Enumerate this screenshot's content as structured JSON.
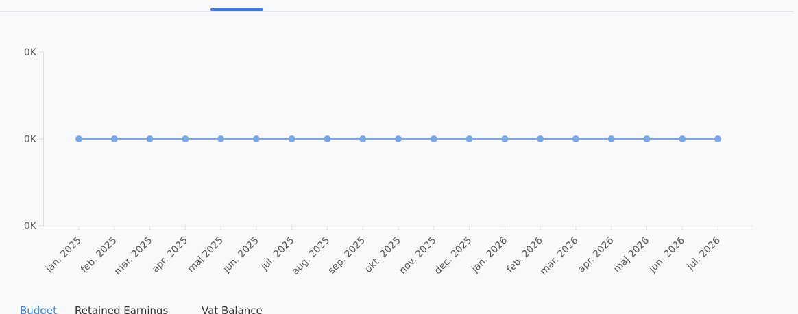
{
  "chart_data": {
    "type": "line",
    "categories": [
      "jan. 2025",
      "feb. 2025",
      "mar. 2025",
      "apr. 2025",
      "maj 2025",
      "jun. 2025",
      "jul. 2025",
      "aug. 2025",
      "sep. 2025",
      "okt. 2025",
      "nov. 2025",
      "dec. 2025",
      "jan. 2026",
      "feb. 2026",
      "mar. 2026",
      "apr. 2026",
      "maj 2026",
      "jun. 2026",
      "jul. 2026"
    ],
    "series": [
      {
        "color": "#7aa7e8",
        "values": [
          0,
          0,
          0,
          0,
          0,
          0,
          0,
          0,
          0,
          0,
          0,
          0,
          0,
          0,
          0,
          0,
          0,
          0,
          0
        ]
      }
    ],
    "ylim": [
      -1,
      1
    ],
    "yticks": [
      {
        "value": -1,
        "label": "0K"
      },
      {
        "value": 0,
        "label": "0K"
      },
      {
        "value": 1,
        "label": "0K"
      }
    ]
  },
  "tabs": [
    "Budget",
    "Retained Earnings",
    "Vat Balance"
  ]
}
